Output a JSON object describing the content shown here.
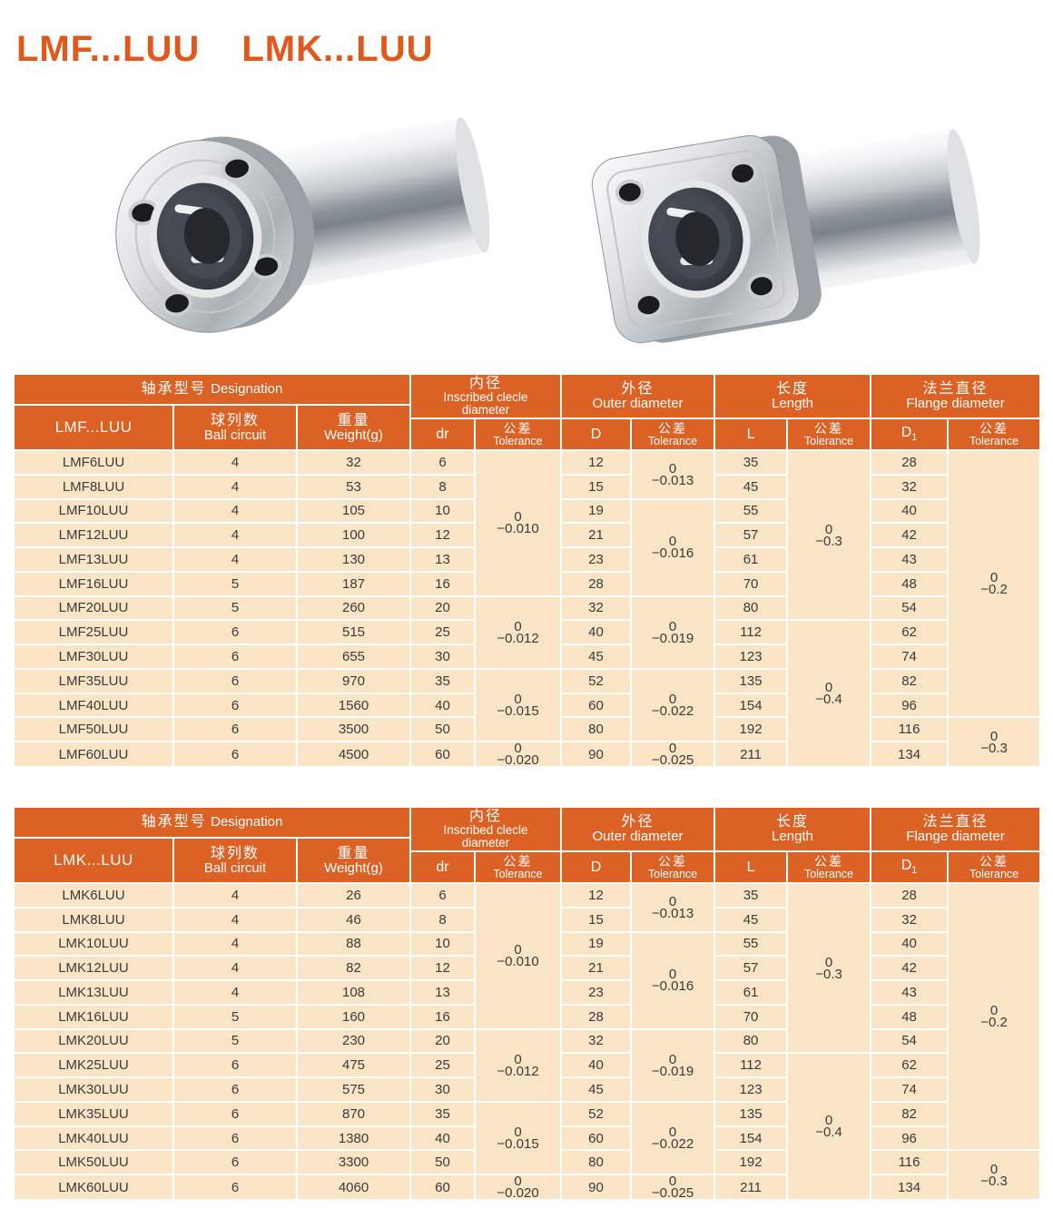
{
  "page": {
    "title_left": "LMF...LUU",
    "title_right": "LMK...LUU"
  },
  "colors": {
    "title_orange": "#e2571a",
    "header_orange": "#db6124",
    "row_cream": "#f9e4c5",
    "grid_white": "#ffffff",
    "body_text": "#3b3b3b"
  },
  "images": [
    {
      "name": "round-flange-linear-bearing",
      "description": "LMF type long linear bearing with round flange"
    },
    {
      "name": "square-flange-linear-bearing",
      "description": "LMK type long linear bearing with square flange"
    }
  ],
  "columns": {
    "designation_cn": "轴承型号",
    "designation_en": "Designation",
    "ball_cn": "球列数",
    "ball_en": "Ball circuit",
    "weight_cn": "重量",
    "weight_en": "Weight(g)",
    "inner_cn": "内径",
    "inner_en_1": "Inscribed clecle",
    "inner_en_2": "diameter",
    "outer_cn": "外径",
    "outer_en": "Outer diameter",
    "length_cn": "长度",
    "length_en": "Length",
    "flange_cn": "法兰直径",
    "flange_en": "Flange diameter",
    "dr": "dr",
    "d": "D",
    "l": "L",
    "d1_base": "D",
    "d1_sub": "1",
    "tol_cn": "公差",
    "tol_en": "Tolerance"
  },
  "tables": [
    {
      "model": "LMF...LUU",
      "rows": [
        [
          "LMF6LUU",
          "4",
          "32",
          "6",
          "12",
          "35",
          "28"
        ],
        [
          "LMF8LUU",
          "4",
          "53",
          "8",
          "15",
          "45",
          "32"
        ],
        [
          "LMF10LUU",
          "4",
          "105",
          "10",
          "19",
          "55",
          "40"
        ],
        [
          "LMF12LUU",
          "4",
          "100",
          "12",
          "21",
          "57",
          "42"
        ],
        [
          "LMF13LUU",
          "4",
          "130",
          "13",
          "23",
          "61",
          "43"
        ],
        [
          "LMF16LUU",
          "5",
          "187",
          "16",
          "28",
          "70",
          "48"
        ],
        [
          "LMF20LUU",
          "5",
          "260",
          "20",
          "32",
          "80",
          "54"
        ],
        [
          "LMF25LUU",
          "6",
          "515",
          "25",
          "40",
          "112",
          "62"
        ],
        [
          "LMF30LUU",
          "6",
          "655",
          "30",
          "45",
          "123",
          "74"
        ],
        [
          "LMF35LUU",
          "6",
          "970",
          "35",
          "52",
          "135",
          "82"
        ],
        [
          "LMF40LUU",
          "6",
          "1560",
          "40",
          "60",
          "154",
          "96"
        ],
        [
          "LMF50LUU",
          "6",
          "3500",
          "50",
          "80",
          "192",
          "116"
        ],
        [
          "LMF60LUU",
          "6",
          "4500",
          "60",
          "90",
          "211",
          "134"
        ]
      ],
      "tol": {
        "dr": [
          {
            "span": 6,
            "zero": "0",
            "dev": "−0.010"
          },
          {
            "span": 3,
            "zero": "0",
            "dev": "−0.012"
          },
          {
            "span": 3,
            "zero": "0",
            "dev": "−0.015"
          },
          {
            "span": 1,
            "zero": "0",
            "dev": "−0.020"
          }
        ],
        "d": [
          {
            "span": 2,
            "zero": "0",
            "dev": "−0.013"
          },
          {
            "span": 4,
            "zero": "0",
            "dev": "−0.016"
          },
          {
            "span": 3,
            "zero": "0",
            "dev": "−0.019"
          },
          {
            "span": 3,
            "zero": "0",
            "dev": "−0.022"
          },
          {
            "span": 1,
            "zero": "0",
            "dev": "−0.025"
          }
        ],
        "l": [
          {
            "span": 7,
            "zero": "0",
            "dev": "−0.3"
          },
          {
            "span": 6,
            "zero": "0",
            "dev": "−0.4"
          }
        ],
        "d1": [
          {
            "span": 11,
            "zero": "0",
            "dev": "−0.2"
          },
          {
            "span": 2,
            "zero": "0",
            "dev": "−0.3"
          }
        ]
      }
    },
    {
      "model": "LMK...LUU",
      "rows": [
        [
          "LMK6LUU",
          "4",
          "26",
          "6",
          "12",
          "35",
          "28"
        ],
        [
          "LMK8LUU",
          "4",
          "46",
          "8",
          "15",
          "45",
          "32"
        ],
        [
          "LMK10LUU",
          "4",
          "88",
          "10",
          "19",
          "55",
          "40"
        ],
        [
          "LMK12LUU",
          "4",
          "82",
          "12",
          "21",
          "57",
          "42"
        ],
        [
          "LMK13LUU",
          "4",
          "108",
          "13",
          "23",
          "61",
          "43"
        ],
        [
          "LMK16LUU",
          "5",
          "160",
          "16",
          "28",
          "70",
          "48"
        ],
        [
          "LMK20LUU",
          "5",
          "230",
          "20",
          "32",
          "80",
          "54"
        ],
        [
          "LMK25LUU",
          "6",
          "475",
          "25",
          "40",
          "112",
          "62"
        ],
        [
          "LMK30LUU",
          "6",
          "575",
          "30",
          "45",
          "123",
          "74"
        ],
        [
          "LMK35LUU",
          "6",
          "870",
          "35",
          "52",
          "135",
          "82"
        ],
        [
          "LMK40LUU",
          "6",
          "1380",
          "40",
          "60",
          "154",
          "96"
        ],
        [
          "LMK50LUU",
          "6",
          "3300",
          "50",
          "80",
          "192",
          "116"
        ],
        [
          "LMK60LUU",
          "6",
          "4060",
          "60",
          "90",
          "211",
          "134"
        ]
      ],
      "tol": {
        "dr": [
          {
            "span": 6,
            "zero": "0",
            "dev": "−0.010"
          },
          {
            "span": 3,
            "zero": "0",
            "dev": "−0.012"
          },
          {
            "span": 3,
            "zero": "0",
            "dev": "−0.015"
          },
          {
            "span": 1,
            "zero": "0",
            "dev": "−0.020"
          }
        ],
        "d": [
          {
            "span": 2,
            "zero": "0",
            "dev": "−0.013"
          },
          {
            "span": 4,
            "zero": "0",
            "dev": "−0.016"
          },
          {
            "span": 3,
            "zero": "0",
            "dev": "−0.019"
          },
          {
            "span": 3,
            "zero": "0",
            "dev": "−0.022"
          },
          {
            "span": 1,
            "zero": "0",
            "dev": "−0.025"
          }
        ],
        "l": [
          {
            "span": 7,
            "zero": "0",
            "dev": "−0.3"
          },
          {
            "span": 6,
            "zero": "0",
            "dev": "−0.4"
          }
        ],
        "d1": [
          {
            "span": 11,
            "zero": "0",
            "dev": "−0.2"
          },
          {
            "span": 2,
            "zero": "0",
            "dev": "−0.3"
          }
        ]
      }
    }
  ]
}
